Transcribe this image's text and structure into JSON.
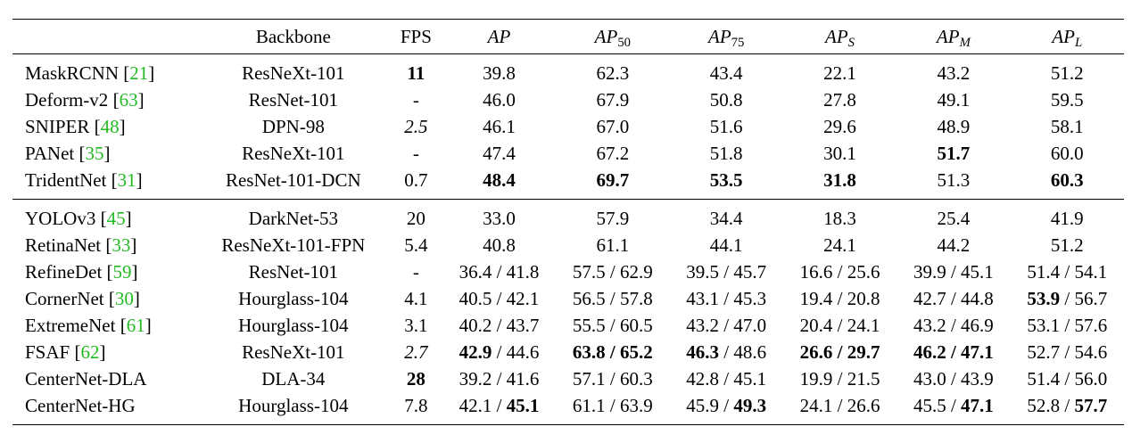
{
  "columns": {
    "backbone": "Backbone",
    "fps": "FPS",
    "ap": "AP",
    "ap50_base": "AP",
    "ap50_sub": "50",
    "ap75_base": "AP",
    "ap75_sub": "75",
    "aps_base": "AP",
    "aps_sub": "S",
    "apm_base": "AP",
    "apm_sub": "M",
    "apl_base": "AP",
    "apl_sub": "L"
  },
  "group1": [
    {
      "name": "MaskRCNN",
      "ref": "21",
      "backbone": "ResNeXt-101",
      "fps": "11",
      "ap": "39.8",
      "ap50": "62.3",
      "ap75": "43.4",
      "aps": "22.1",
      "apm": "43.2",
      "apl": "51.2"
    },
    {
      "name": "Deform-v2",
      "ref": "63",
      "backbone": "ResNet-101",
      "fps": "-",
      "ap": "46.0",
      "ap50": "67.9",
      "ap75": "50.8",
      "aps": "27.8",
      "apm": "49.1",
      "apl": "59.5"
    },
    {
      "name": "SNIPER",
      "ref": "48",
      "backbone": "DPN-98",
      "fps": "2.5",
      "ap": "46.1",
      "ap50": "67.0",
      "ap75": "51.6",
      "aps": "29.6",
      "apm": "48.9",
      "apl": "58.1"
    },
    {
      "name": "PANet",
      "ref": "35",
      "backbone": "ResNeXt-101",
      "fps": "-",
      "ap": "47.4",
      "ap50": "67.2",
      "ap75": "51.8",
      "aps": "30.1",
      "apm": "51.7",
      "apl": "60.0"
    },
    {
      "name": "TridentNet",
      "ref": "31",
      "backbone": "ResNet-101-DCN",
      "fps": "0.7",
      "ap": "48.4",
      "ap50": "69.7",
      "ap75": "53.5",
      "aps": "31.8",
      "apm": "51.3",
      "apl": "60.3"
    }
  ],
  "group2": [
    {
      "name": "YOLOv3",
      "ref": "45",
      "backbone": "DarkNet-53",
      "fps": "20",
      "ap": "33.0",
      "ap50": "57.9",
      "ap75": "34.4",
      "aps": "18.3",
      "apm": "25.4",
      "apl": "41.9"
    },
    {
      "name": "RetinaNet",
      "ref": "33",
      "backbone": "ResNeXt-101-FPN",
      "fps": "5.4",
      "ap": "40.8",
      "ap50": "61.1",
      "ap75": "44.1",
      "aps": "24.1",
      "apm": "44.2",
      "apl": "51.2"
    },
    {
      "name": "RefineDet",
      "ref": "59",
      "backbone": "ResNet-101",
      "fps": "-",
      "ap_a": "36.4",
      "ap_b": "41.8",
      "ap50_a": "57.5",
      "ap50_b": "62.9",
      "ap75_a": "39.5",
      "ap75_b": "45.7",
      "aps_a": "16.6",
      "aps_b": "25.6",
      "apm_a": "39.9",
      "apm_b": "45.1",
      "apl_a": "51.4",
      "apl_b": "54.1"
    },
    {
      "name": "CornerNet",
      "ref": "30",
      "backbone": "Hourglass-104",
      "fps": "4.1",
      "ap_a": "40.5",
      "ap_b": "42.1",
      "ap50_a": "56.5",
      "ap50_b": "57.8",
      "ap75_a": "43.1",
      "ap75_b": "45.3",
      "aps_a": "19.4",
      "aps_b": "20.8",
      "apm_a": "42.7",
      "apm_b": "44.8",
      "apl_a": "53.9",
      "apl_b": "56.7"
    },
    {
      "name": "ExtremeNet",
      "ref": "61",
      "backbone": "Hourglass-104",
      "fps": "3.1",
      "ap_a": "40.2",
      "ap_b": "43.7",
      "ap50_a": "55.5",
      "ap50_b": "60.5",
      "ap75_a": "43.2",
      "ap75_b": "47.0",
      "aps_a": "20.4",
      "aps_b": "24.1",
      "apm_a": "43.2",
      "apm_b": "46.9",
      "apl_a": "53.1",
      "apl_b": "57.6"
    },
    {
      "name": "FSAF",
      "ref": "62",
      "backbone": "ResNeXt-101",
      "fps": "2.7",
      "ap_a": "42.9",
      "ap_b": "44.6",
      "ap50_a": "63.8",
      "ap50_b": "65.2",
      "ap75_a": "46.3",
      "ap75_b": "48.6",
      "aps_a": "26.6",
      "aps_b": "29.7",
      "apm_a": "46.2",
      "apm_b": "47.1",
      "apl_a": "52.7",
      "apl_b": "54.6"
    },
    {
      "name": "CenterNet-DLA",
      "backbone": "DLA-34",
      "fps": "28",
      "ap_a": "39.2",
      "ap_b": "41.6",
      "ap50_a": "57.1",
      "ap50_b": "60.3",
      "ap75_a": "42.8",
      "ap75_b": "45.1",
      "aps_a": "19.9",
      "aps_b": "21.5",
      "apm_a": "43.0",
      "apm_b": "43.9",
      "apl_a": "51.4",
      "apl_b": "56.0"
    },
    {
      "name": "CenterNet-HG",
      "backbone": "Hourglass-104",
      "fps": "7.8",
      "ap_a": "42.1",
      "ap_b": "45.1",
      "ap50_a": "61.1",
      "ap50_b": "63.9",
      "ap75_a": "45.9",
      "ap75_b": "49.3",
      "aps_a": "24.1",
      "aps_b": "26.6",
      "apm_a": "45.5",
      "apm_b": "47.1",
      "apl_a": "52.8",
      "apl_b": "57.7"
    }
  ]
}
